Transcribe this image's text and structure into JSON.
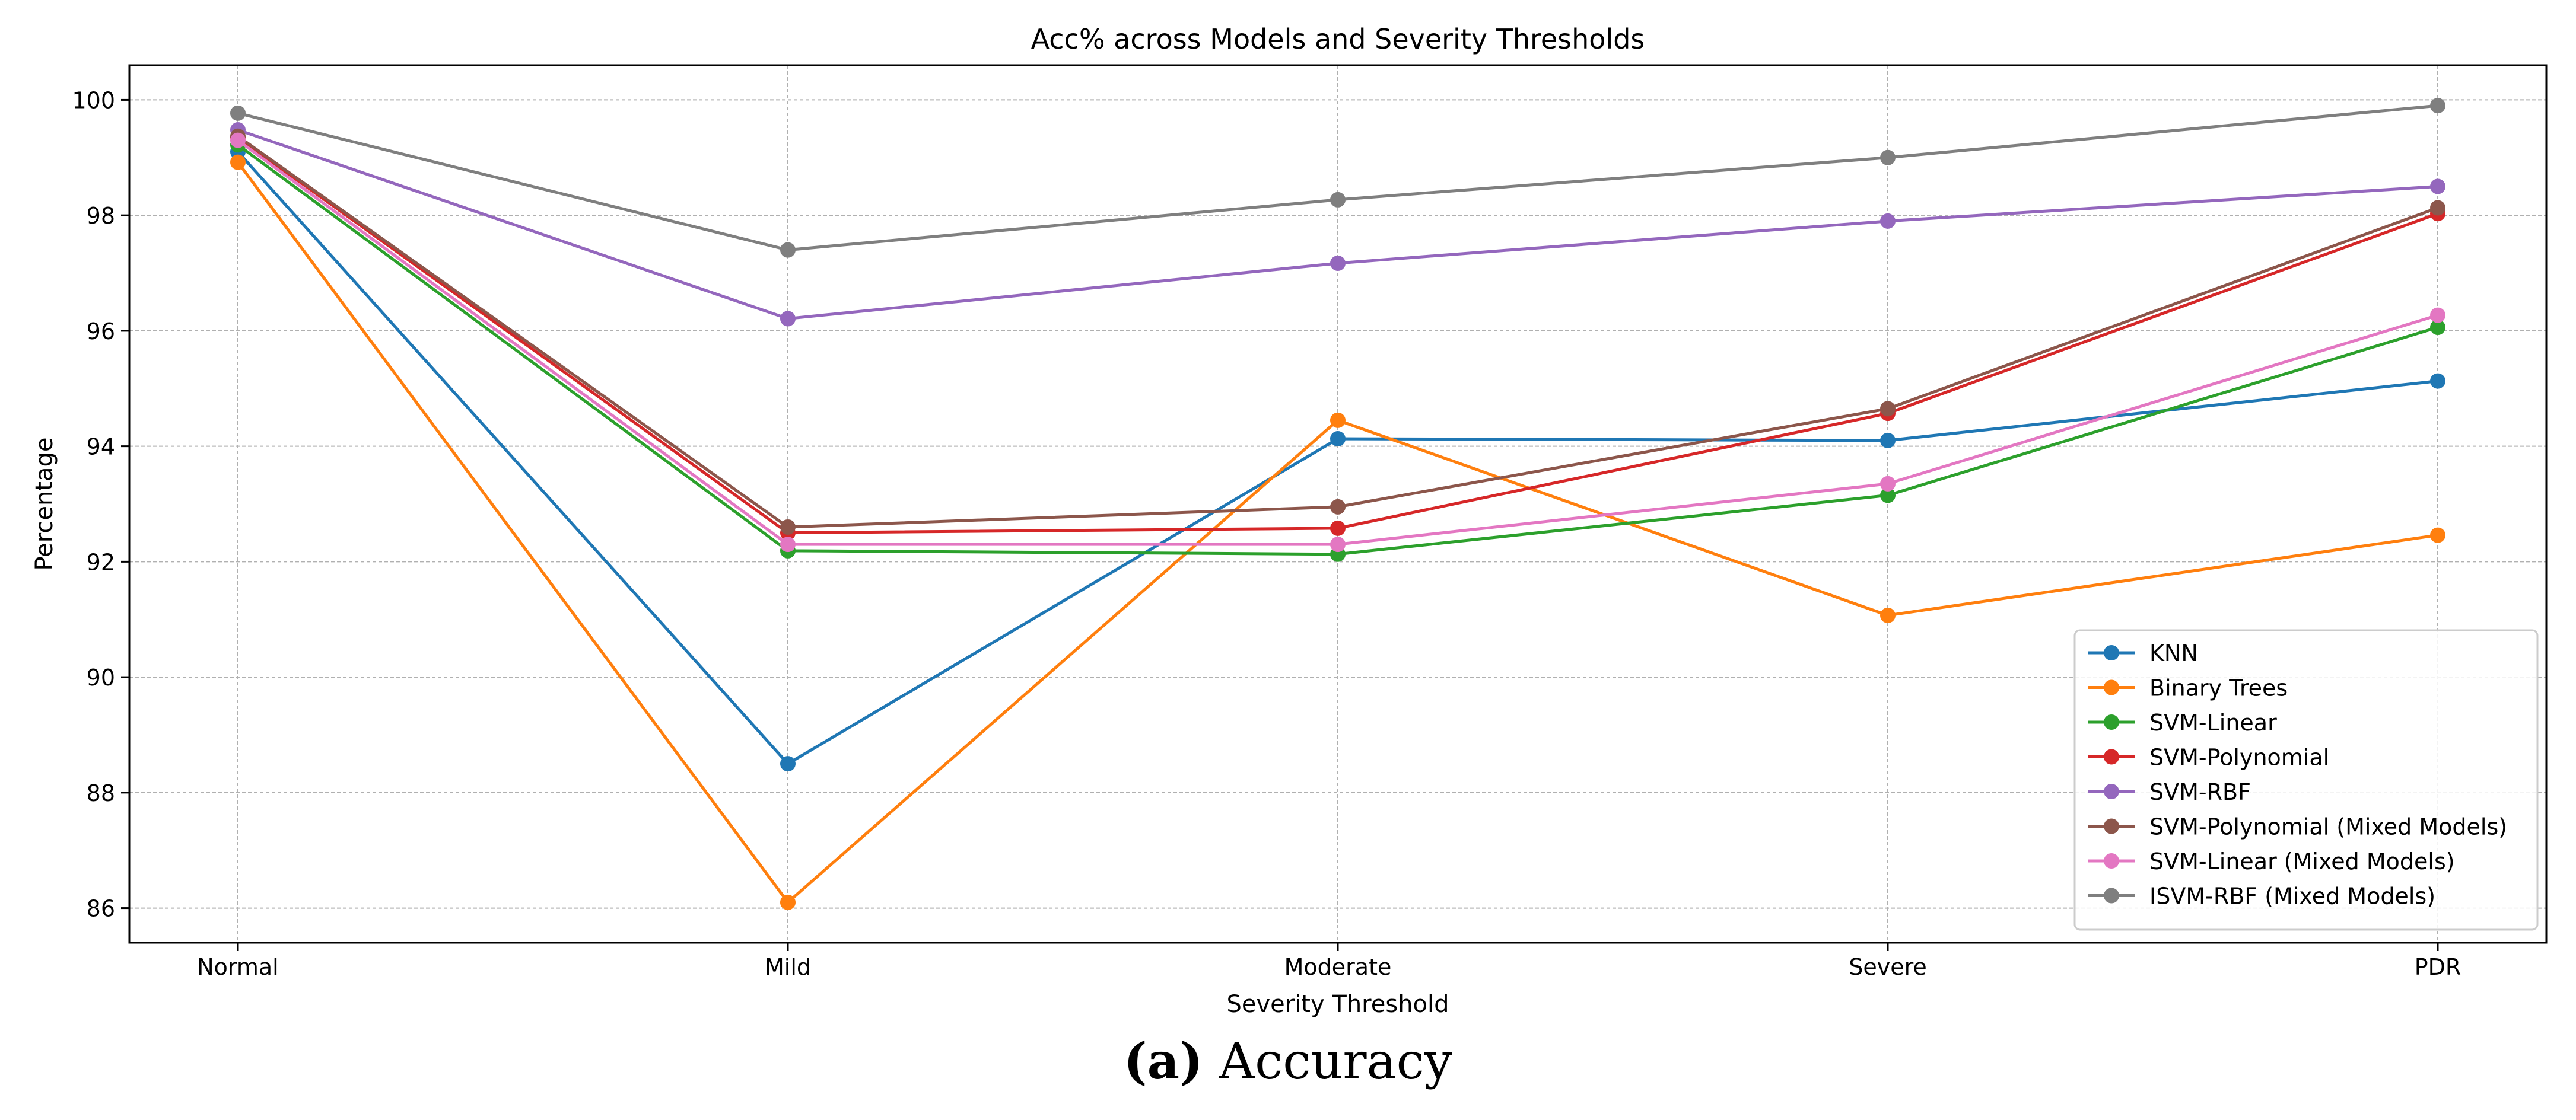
{
  "chart_data": {
    "type": "line",
    "title": "Acc% across Models and Severity Thresholds",
    "xlabel": "Severity Threshold",
    "ylabel": "Percentage",
    "categories": [
      "Normal",
      "Mild",
      "Moderate",
      "Severe",
      "PDR"
    ],
    "ylim": [
      85.4,
      100.6
    ],
    "yticks": [
      86,
      88,
      90,
      92,
      94,
      96,
      98,
      100
    ],
    "grid": true,
    "legend_position": "lower-right",
    "series": [
      {
        "name": "KNN",
        "color": "#1f77b4",
        "values": [
          99.1,
          88.5,
          94.13,
          94.1,
          95.13
        ]
      },
      {
        "name": "Binary Trees",
        "color": "#ff7f0e",
        "values": [
          98.92,
          86.1,
          94.45,
          91.07,
          92.46
        ]
      },
      {
        "name": "SVM-Linear",
        "color": "#2ca02c",
        "values": [
          99.22,
          92.19,
          92.13,
          93.15,
          96.06
        ]
      },
      {
        "name": "SVM-Polynomial",
        "color": "#d62728",
        "values": [
          99.35,
          92.5,
          92.58,
          94.57,
          98.03
        ]
      },
      {
        "name": "SVM-RBF",
        "color": "#9467bd",
        "values": [
          99.48,
          96.21,
          97.17,
          97.9,
          98.5
        ]
      },
      {
        "name": "SVM-Polynomial (Mixed Models)",
        "color": "#8c564b",
        "values": [
          99.37,
          92.6,
          92.95,
          94.65,
          98.13
        ]
      },
      {
        "name": "SVM-Linear (Mixed Models)",
        "color": "#e377c2",
        "values": [
          99.3,
          92.3,
          92.3,
          93.35,
          96.27
        ]
      },
      {
        "name": "ISVM-RBF (Mixed Models)",
        "color": "#7f7f7f",
        "values": [
          99.77,
          97.4,
          98.27,
          99.0,
          99.9
        ]
      }
    ]
  },
  "caption": {
    "label": "(a)",
    "text": "Accuracy"
  }
}
